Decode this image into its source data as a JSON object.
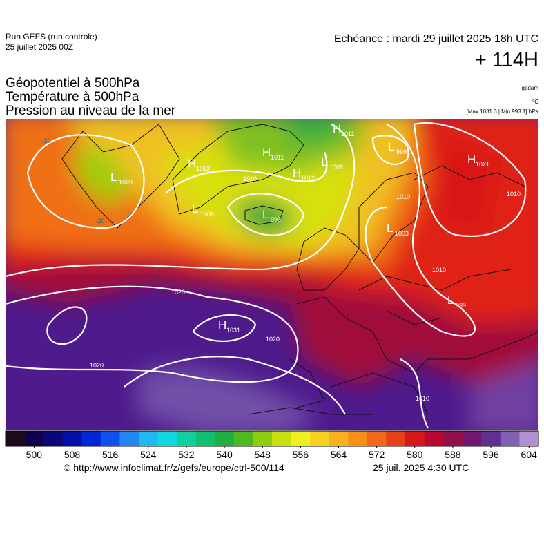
{
  "header": {
    "run": "Run GEFS (run controle)",
    "run_date": "25 juillet 2025 00Z",
    "echeance": "Echéance : mardi 29 juillet 2025 18h UTC",
    "lead": "+ 114H",
    "titles": [
      "Géopotentiel à 500hPa",
      "Température à 500hPa",
      "Pression au niveau de la mer"
    ],
    "units": [
      "gpdam",
      "°C",
      "[Max 1031.3 | Min 993.1] hPa"
    ]
  },
  "map": {
    "systems": [
      {
        "symbol": "L",
        "value": "1020"
      },
      {
        "symbol": "H",
        "value": "1012"
      },
      {
        "symbol": "H",
        "value": "1011"
      },
      {
        "symbol": "H",
        "value": "1011"
      },
      {
        "symbol": "L",
        "value": "999"
      },
      {
        "symbol": "H",
        "value": "1012"
      },
      {
        "symbol": "L",
        "value": "1008"
      },
      {
        "symbol": "L",
        "value": "1006"
      },
      {
        "symbol": "L",
        "value": "993"
      },
      {
        "symbol": "H",
        "value": "1021"
      },
      {
        "symbol": "L",
        "value": "1003"
      },
      {
        "symbol": "L",
        "value": "999"
      },
      {
        "symbol": "H",
        "value": "1031"
      }
    ],
    "contour_labels": [
      "1010",
      "1020",
      "1020",
      "1020",
      "1010",
      "1010",
      "-20",
      "-20",
      "1010",
      "1010"
    ]
  },
  "colorbar": {
    "range": [
      494,
      606
    ],
    "ticks": [
      500,
      508,
      516,
      524,
      532,
      540,
      548,
      556,
      564,
      572,
      580,
      588,
      596,
      604
    ],
    "colors": [
      "#1a0a1a",
      "#10004a",
      "#0a0878",
      "#0010a8",
      "#0028d8",
      "#1050f0",
      "#2088f0",
      "#20b8f0",
      "#10d8e0",
      "#10d0a0",
      "#10c070",
      "#20b040",
      "#50b820",
      "#90cc10",
      "#c8e010",
      "#f0f020",
      "#f8d020",
      "#f8b020",
      "#f89018",
      "#f06818",
      "#e84018",
      "#d81818",
      "#b80830",
      "#901048",
      "#701870",
      "#603090",
      "#8060b0",
      "#b090d0"
    ]
  },
  "footer": {
    "url": "© http://www.infoclimat.fr/z/gefs/europe/ctrl-500/114",
    "generated": "25 juil. 2025  4:30 UTC"
  }
}
